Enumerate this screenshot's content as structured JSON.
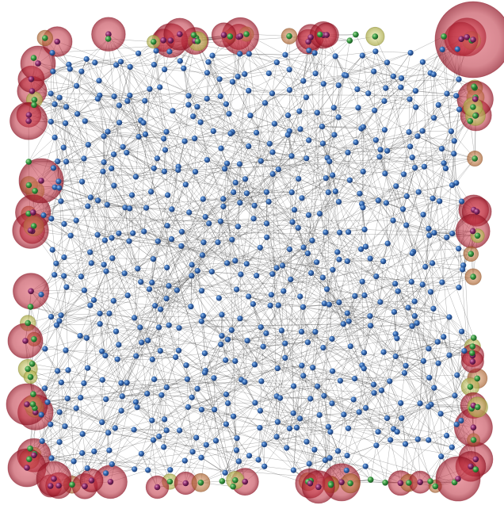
{
  "diagram": {
    "type": "network-graph",
    "layout": "square-grid-random-geometric",
    "interior_node_count": 620,
    "boundary_node_count": 120,
    "edge_density": "dense",
    "node_groups": [
      {
        "role": "interior",
        "color": "#2f5f9e",
        "glow": "none"
      },
      {
        "role": "boundary-small",
        "color": "#2f8a3a",
        "glow": "#c9d27a"
      },
      {
        "role": "boundary-medium",
        "color": "#8a5a2a",
        "glow": "#c78a56"
      },
      {
        "role": "boundary-large",
        "color": "#7a1f4a",
        "glow": "#c8344a"
      }
    ],
    "edge_color": "#303030"
  }
}
